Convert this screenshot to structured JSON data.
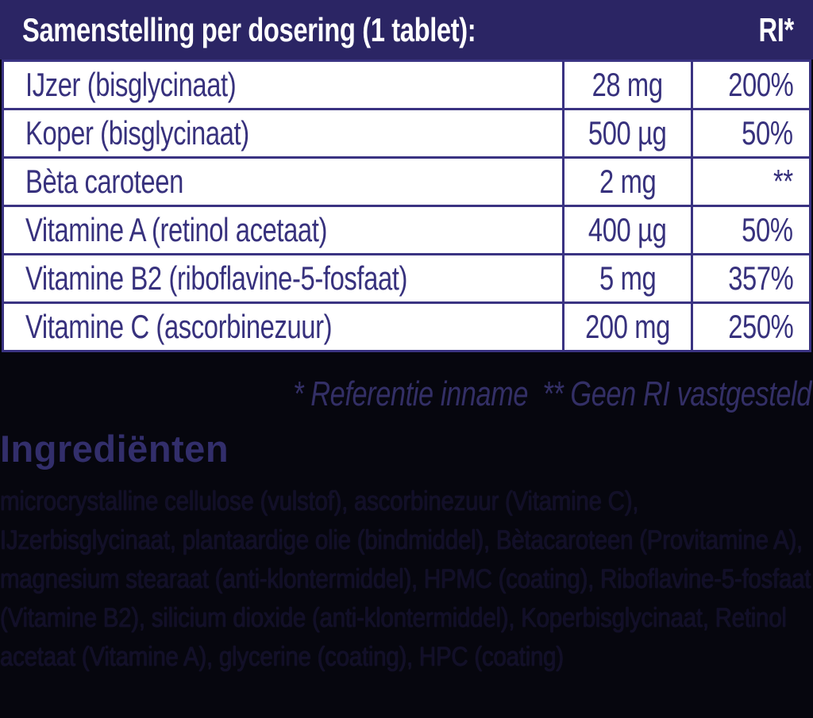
{
  "colors": {
    "background": "#06060e",
    "header_bg": "#2b2564",
    "header_text": "#ffffff",
    "table_text": "#37317d",
    "table_border": "#3a3382",
    "table_row_bg": "#ffffff",
    "footnote_text": "#332f66",
    "heading_text": "#322e6b",
    "paragraph_text": "#120f28"
  },
  "table": {
    "header": {
      "title": "Samenstelling per dosering (1 tablet):",
      "ri_label": "RI*"
    },
    "rows": [
      {
        "name": "IJzer (bisglycinaat)",
        "amount": "28 mg",
        "ri": "200%"
      },
      {
        "name": "Koper (bisglycinaat)",
        "amount": "500 µg",
        "ri": "50%"
      },
      {
        "name": "Bèta caroteen",
        "amount": "2 mg",
        "ri": "**"
      },
      {
        "name": "Vitamine A (retinol acetaat)",
        "amount": "400 µg",
        "ri": "50%"
      },
      {
        "name": "Vitamine B2 (riboflavine-5-fosfaat)",
        "amount": "5 mg",
        "ri": "357%"
      },
      {
        "name": "Vitamine C (ascorbinezuur)",
        "amount": "200 mg",
        "ri": "250%"
      }
    ]
  },
  "footnote": {
    "text": "* Referentie inname  ** Geen RI vastgesteld"
  },
  "ingredients": {
    "heading": "Ingrediënten",
    "text": "microcrystalline cellulose (vulstof), ascorbinezuur (Vitamine C), IJzerbisglycinaat, plantaardige olie (bindmiddel), Bètacaroteen (Provitamine A), magnesium stearaat (anti-klontermiddel), HPMC (coating), Riboflavine-5-fosfaat (Vitamine B2), silicium dioxide (anti-klontermiddel), Koperbisglycinaat, Retinol acetaat (Vitamine A), glycerine (coating), HPC (coating)"
  }
}
